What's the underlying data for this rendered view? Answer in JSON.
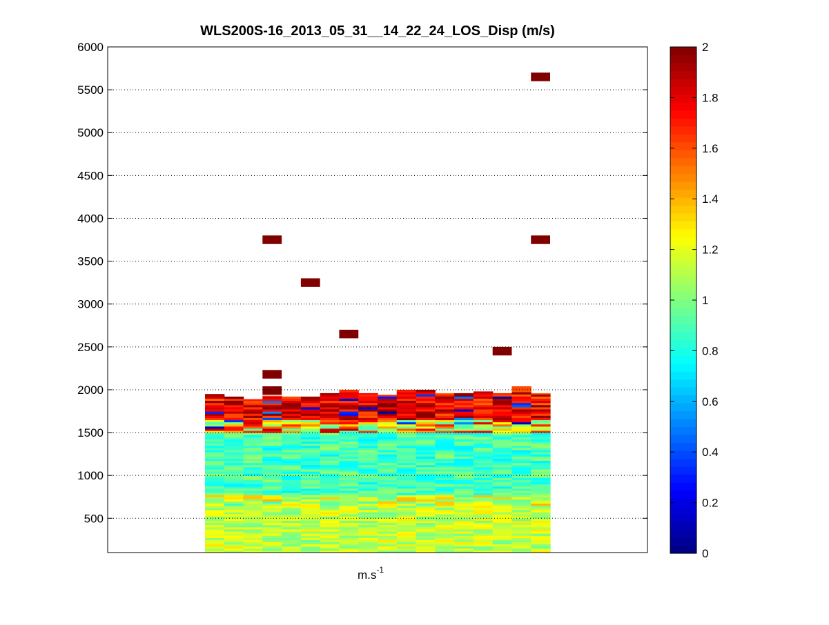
{
  "chart_data": {
    "type": "heatmap",
    "title": "WLS200S-16_2013_05_31__14_22_24_LOS_Disp (m/s)",
    "xlabel": "m.s",
    "xlabel_superscript": "-1",
    "ylabel": "",
    "ylim": [
      100,
      6000
    ],
    "yticks": [
      500,
      1000,
      1500,
      2000,
      2500,
      3000,
      3500,
      4000,
      4500,
      5000,
      5500,
      6000
    ],
    "grid": "horizontal dotted",
    "colorbar": {
      "range": [
        0,
        2
      ],
      "ticks": [
        0,
        0.2,
        0.4,
        0.6,
        0.8,
        1,
        1.2,
        1.4,
        1.6,
        1.8,
        2
      ],
      "colormap": "jet"
    },
    "columns": 18,
    "column_fill_tops": [
      1950,
      1920,
      1890,
      1930,
      1920,
      1920,
      1960,
      2000,
      1960,
      1940,
      2000,
      2000,
      1960,
      1960,
      1980,
      1960,
      2040,
      1960
    ],
    "isolated_cells": [
      {
        "column": 3,
        "altitude": 3750,
        "value": 2
      },
      {
        "column": 3,
        "altitude": 2180,
        "value": 2
      },
      {
        "column": 3,
        "altitude": 1990,
        "value": 2
      },
      {
        "column": 5,
        "altitude": 3250,
        "value": 2
      },
      {
        "column": 7,
        "altitude": 2650,
        "value": 2
      },
      {
        "column": 15,
        "altitude": 2450,
        "value": 2
      },
      {
        "column": 17,
        "altitude": 5650,
        "value": 2
      },
      {
        "column": 17,
        "altitude": 3750,
        "value": 2
      }
    ]
  }
}
